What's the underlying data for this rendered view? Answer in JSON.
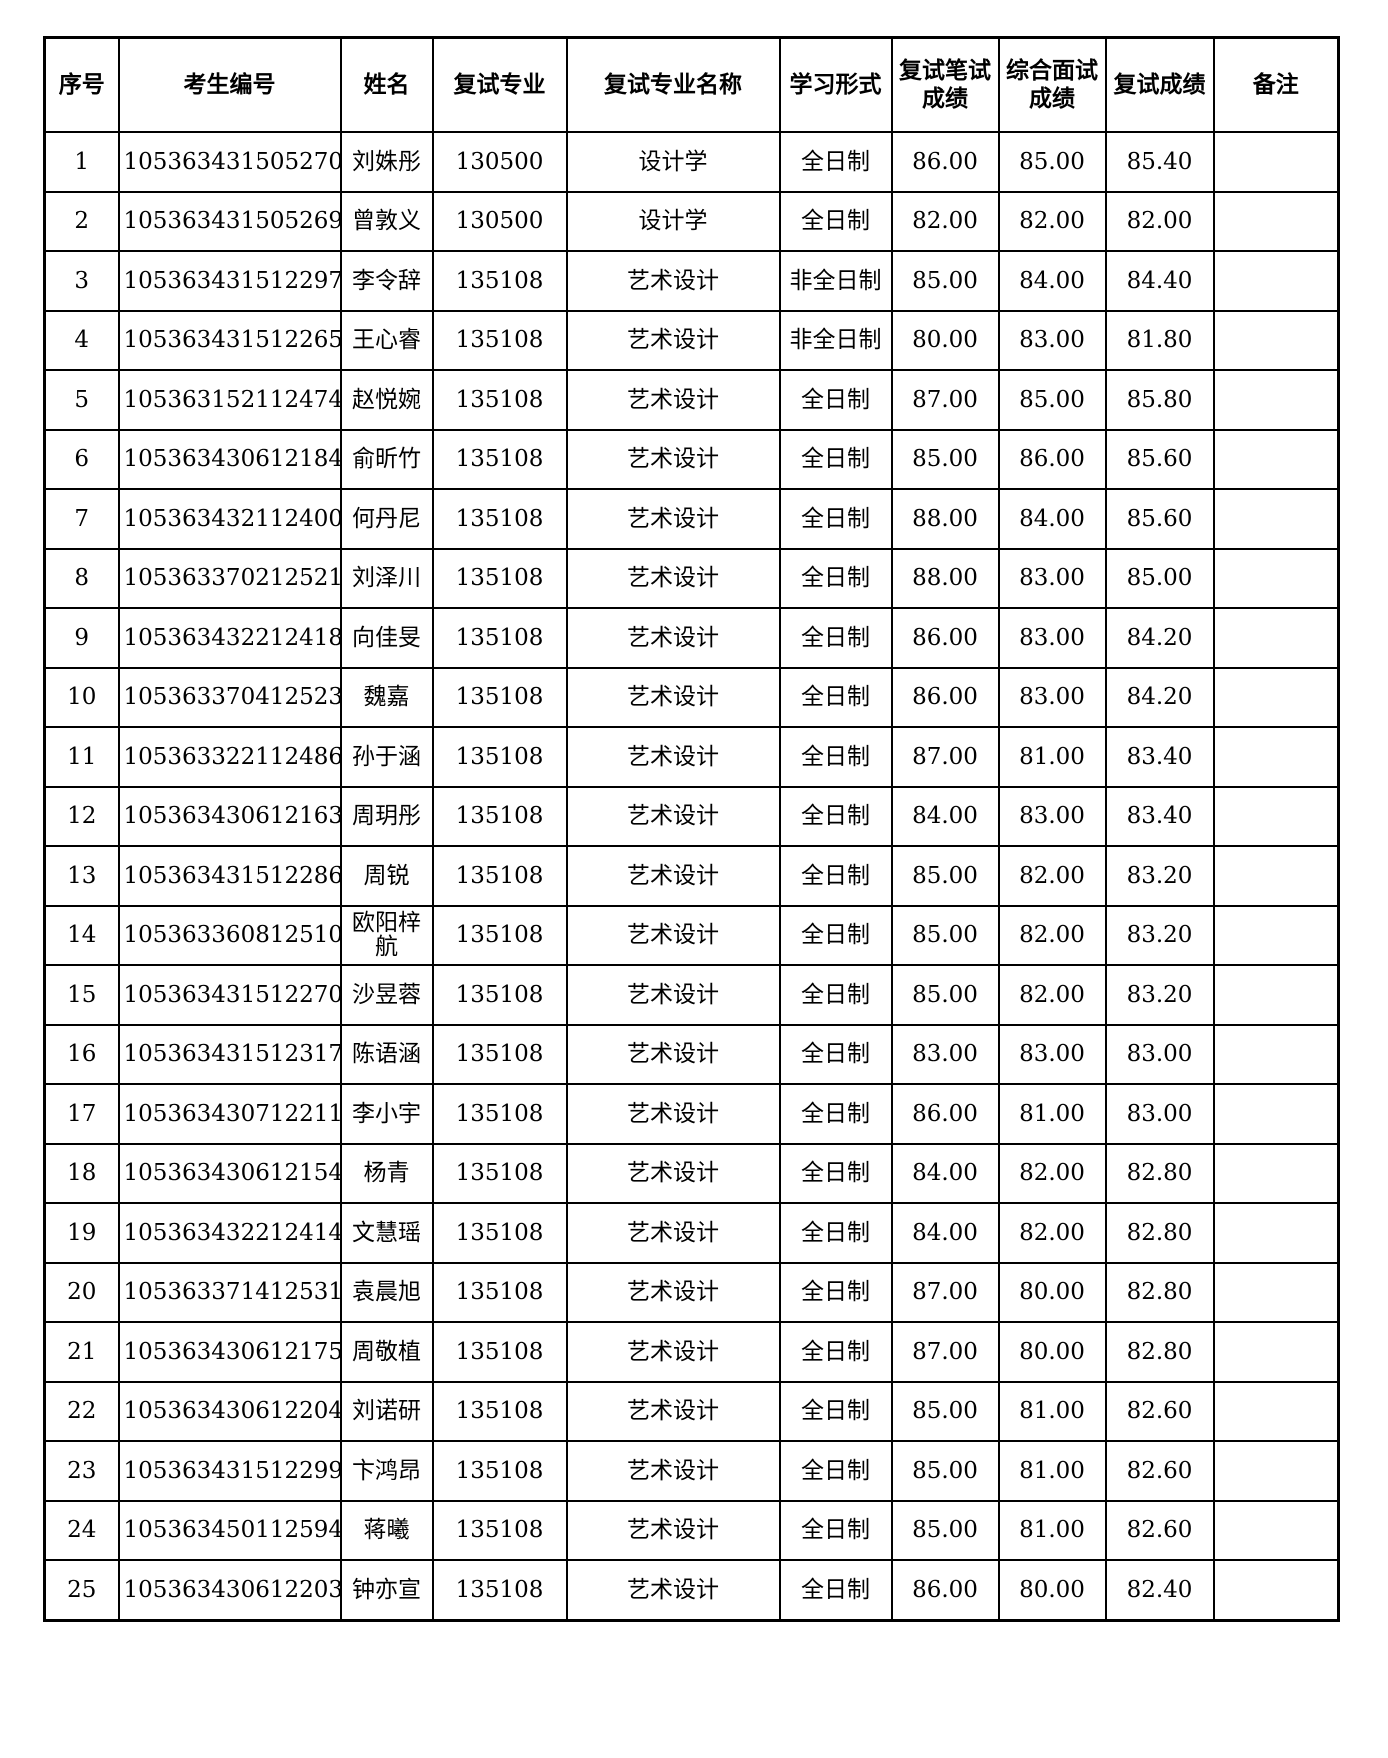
{
  "table": {
    "header": [
      "序号",
      "考生编号",
      "姓名",
      "复试专业",
      "复试专业名称",
      "学习形式",
      "复试笔试成绩",
      "综合面试成绩",
      "复试成绩",
      "备注"
    ],
    "rows": [
      [
        "1",
        "105363431505270",
        "刘姝彤",
        "130500",
        "设计学",
        "全日制",
        "86.00",
        "85.00",
        "85.40"
      ],
      [
        "2",
        "105363431505269",
        "曾敦义",
        "130500",
        "设计学",
        "全日制",
        "82.00",
        "82.00",
        "82.00"
      ],
      [
        "3",
        "105363431512297",
        "李令辞",
        "135108",
        "艺术设计",
        "非全日制",
        "85.00",
        "84.00",
        "84.40"
      ],
      [
        "4",
        "105363431512265",
        "王心睿",
        "135108",
        "艺术设计",
        "非全日制",
        "80.00",
        "83.00",
        "81.80"
      ],
      [
        "5",
        "105363152112474",
        "赵悦婉",
        "135108",
        "艺术设计",
        "全日制",
        "87.00",
        "85.00",
        "85.80"
      ],
      [
        "6",
        "105363430612184",
        "俞昕竹",
        "135108",
        "艺术设计",
        "全日制",
        "85.00",
        "86.00",
        "85.60"
      ],
      [
        "7",
        "105363432112400",
        "何丹尼",
        "135108",
        "艺术设计",
        "全日制",
        "88.00",
        "84.00",
        "85.60"
      ],
      [
        "8",
        "105363370212521",
        "刘泽川",
        "135108",
        "艺术设计",
        "全日制",
        "88.00",
        "83.00",
        "85.00"
      ],
      [
        "9",
        "105363432212418",
        "向佳旻",
        "135108",
        "艺术设计",
        "全日制",
        "86.00",
        "83.00",
        "84.20"
      ],
      [
        "10",
        "105363370412523",
        "魏嘉",
        "135108",
        "艺术设计",
        "全日制",
        "86.00",
        "83.00",
        "84.20"
      ],
      [
        "11",
        "105363322112486",
        "孙于涵",
        "135108",
        "艺术设计",
        "全日制",
        "87.00",
        "81.00",
        "83.40"
      ],
      [
        "12",
        "105363430612163",
        "周玥彤",
        "135108",
        "艺术设计",
        "全日制",
        "84.00",
        "83.00",
        "83.40"
      ],
      [
        "13",
        "105363431512286",
        "周锐",
        "135108",
        "艺术设计",
        "全日制",
        "85.00",
        "82.00",
        "83.20"
      ],
      [
        "14",
        "105363360812510",
        "欧阳梓航",
        "135108",
        "艺术设计",
        "全日制",
        "85.00",
        "82.00",
        "83.20"
      ],
      [
        "15",
        "105363431512270",
        "沙昱蓉",
        "135108",
        "艺术设计",
        "全日制",
        "85.00",
        "82.00",
        "83.20"
      ],
      [
        "16",
        "105363431512317",
        "陈语涵",
        "135108",
        "艺术设计",
        "全日制",
        "83.00",
        "83.00",
        "83.00"
      ],
      [
        "17",
        "105363430712211",
        "李小宇",
        "135108",
        "艺术设计",
        "全日制",
        "86.00",
        "81.00",
        "83.00"
      ],
      [
        "18",
        "105363430612154",
        "杨青",
        "135108",
        "艺术设计",
        "全日制",
        "84.00",
        "82.00",
        "82.80"
      ],
      [
        "19",
        "105363432212414",
        "文慧瑶",
        "135108",
        "艺术设计",
        "全日制",
        "84.00",
        "82.00",
        "82.80"
      ],
      [
        "20",
        "105363371412531",
        "袁晨旭",
        "135108",
        "艺术设计",
        "全日制",
        "87.00",
        "80.00",
        "82.80"
      ],
      [
        "21",
        "105363430612175",
        "周敬植",
        "135108",
        "艺术设计",
        "全日制",
        "87.00",
        "80.00",
        "82.80"
      ],
      [
        "22",
        "105363430612204",
        "刘诺研",
        "135108",
        "艺术设计",
        "全日制",
        "85.00",
        "81.00",
        "82.60"
      ],
      [
        "23",
        "105363431512299",
        "卞鸿昂",
        "135108",
        "艺术设计",
        "全日制",
        "85.00",
        "81.00",
        "82.60"
      ],
      [
        "24",
        "105363450112594",
        "蒋曦",
        "135108",
        "艺术设计",
        "全日制",
        "85.00",
        "81.00",
        "82.60"
      ],
      [
        "25",
        "105363430612203",
        "钟亦宣",
        "135108",
        "艺术设计",
        "全日制",
        "86.00",
        "80.00",
        "82.40"
      ]
    ]
  }
}
